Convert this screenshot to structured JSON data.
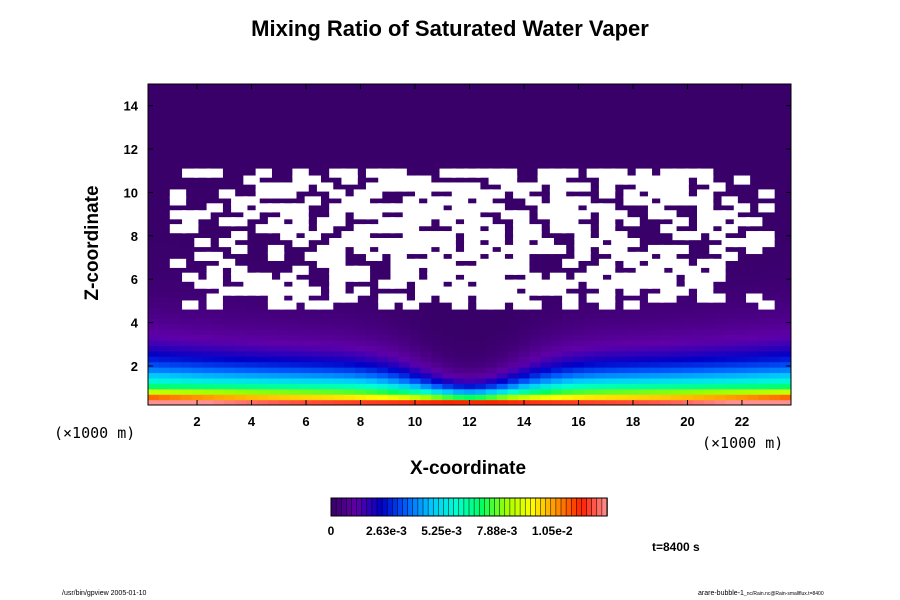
{
  "chart_data": {
    "type": "heatmap",
    "title": "Mixing Ratio of Saturated Water Vaper",
    "xlabel": "X-coordinate",
    "ylabel": "Z-coordinate",
    "x_unit": "(×1000 m)",
    "y_unit": "(×1000 m)",
    "xlim": [
      0.2,
      23.8
    ],
    "ylim": [
      0.2,
      15
    ],
    "x_ticks": [
      2,
      4,
      6,
      8,
      10,
      12,
      14,
      16,
      18,
      20,
      22
    ],
    "y_ticks": [
      2,
      4,
      6,
      8,
      10,
      12,
      14
    ],
    "colorbar": {
      "range": [
        0,
        0.0131
      ],
      "tick_values": [
        0,
        0.00263,
        0.00525,
        0.00788,
        0.0105
      ],
      "tick_labels": [
        "0",
        "2.63e-3",
        "5.25e-3",
        "7.88e-3",
        "1.05e-2"
      ],
      "colors": [
        "#380068",
        "#6000a8",
        "#0000c8",
        "#0060ff",
        "#00c8ff",
        "#00ffd0",
        "#00ff60",
        "#a0ff00",
        "#ffff00",
        "#ff9000",
        "#ff2000",
        "#ff9090"
      ]
    },
    "missing_region": {
      "x_range": [
        1.0,
        23.0
      ],
      "z_range": [
        4.6,
        11.0
      ]
    },
    "time_label": "t=8400 s"
  },
  "footer": {
    "left": "/usr/bin/gpview 2005-01-10",
    "right_main": "arare-bubble-1",
    "right_sub": "_nc/Rain.nc@Rain-smallflux.t=8400"
  }
}
